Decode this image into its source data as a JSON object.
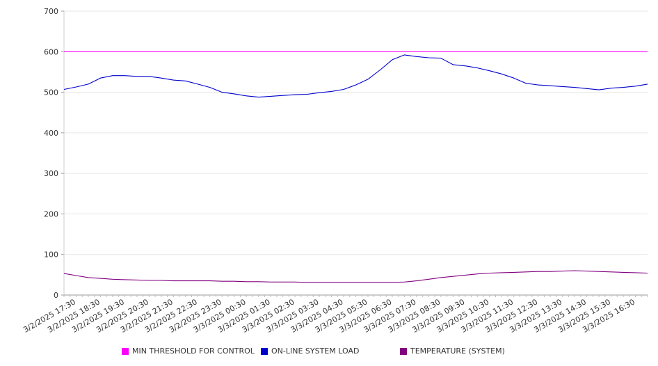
{
  "chart_data": {
    "type": "line",
    "ylim": [
      0,
      700
    ],
    "y_ticks": [
      0,
      100,
      200,
      300,
      400,
      500,
      600,
      700
    ],
    "grid": "horizontal",
    "legend_placement": "bottom",
    "x_tick_labels": [
      "3/2/2025 17:30",
      "3/2/2025 18:30",
      "3/2/2025 19:30",
      "3/2/2025 20:30",
      "3/2/2025 21:30",
      "3/2/2025 22:30",
      "3/2/2025 23:30",
      "3/3/2025 00:30",
      "3/3/2025 01:30",
      "3/3/2025 02:30",
      "3/3/2025 03:30",
      "3/3/2025 04:30",
      "3/3/2025 05:30",
      "3/3/2025 06:30",
      "3/3/2025 07:30",
      "3/3/2025 08:30",
      "3/3/2025 09:30",
      "3/3/2025 10:30",
      "3/3/2025 11:30",
      "3/3/2025 12:30",
      "3/3/2025 13:30",
      "3/3/2025 14:30",
      "3/3/2025 15:30",
      "3/3/2025 16:30"
    ],
    "x": [
      "3/2/2025 17:30",
      "3/2/2025 18:00",
      "3/2/2025 18:30",
      "3/2/2025 19:00",
      "3/2/2025 19:30",
      "3/2/2025 20:00",
      "3/2/2025 20:30",
      "3/2/2025 21:00",
      "3/2/2025 21:30",
      "3/2/2025 22:00",
      "3/2/2025 22:30",
      "3/2/2025 23:00",
      "3/2/2025 23:30",
      "3/3/2025 00:00",
      "3/3/2025 00:30",
      "3/3/2025 01:00",
      "3/3/2025 01:30",
      "3/3/2025 02:00",
      "3/3/2025 02:30",
      "3/3/2025 03:00",
      "3/3/2025 03:30",
      "3/3/2025 04:00",
      "3/3/2025 04:30",
      "3/3/2025 05:00",
      "3/3/2025 05:30",
      "3/3/2025 06:00",
      "3/3/2025 06:30",
      "3/3/2025 07:00",
      "3/3/2025 07:30",
      "3/3/2025 08:00",
      "3/3/2025 08:30",
      "3/3/2025 09:00",
      "3/3/2025 09:30",
      "3/3/2025 10:00",
      "3/3/2025 10:30",
      "3/3/2025 11:00",
      "3/3/2025 11:30",
      "3/3/2025 12:00",
      "3/3/2025 12:30",
      "3/3/2025 13:00",
      "3/3/2025 13:30",
      "3/3/2025 14:00",
      "3/3/2025 14:30",
      "3/3/2025 15:00",
      "3/3/2025 15:30",
      "3/3/2025 16:00",
      "3/3/2025 16:30",
      "3/3/2025 17:00",
      "3/3/2025 17:30"
    ],
    "series": [
      {
        "name": "MIN THRESHOLD FOR CONTROL",
        "color": "#ff00ff",
        "values": [
          600,
          600,
          600,
          600,
          600,
          600,
          600,
          600,
          600,
          600,
          600,
          600,
          600,
          600,
          600,
          600,
          600,
          600,
          600,
          600,
          600,
          600,
          600,
          600,
          600,
          600,
          600,
          600,
          600,
          600,
          600,
          600,
          600,
          600,
          600,
          600,
          600,
          600,
          600,
          600,
          600,
          600,
          600,
          600,
          600,
          600,
          600,
          600,
          600
        ]
      },
      {
        "name": "ON-LINE SYSTEM LOAD",
        "color": "#0000cc",
        "values": [
          507,
          513,
          520,
          535,
          541,
          541,
          539,
          539,
          535,
          530,
          528,
          520,
          512,
          500,
          496,
          491,
          488,
          490,
          492,
          494,
          495,
          499,
          502,
          507,
          518,
          532,
          555,
          580,
          592,
          588,
          585,
          584,
          568,
          565,
          560,
          553,
          545,
          535,
          522,
          518,
          516,
          514,
          512,
          509,
          506,
          510,
          512,
          515,
          520
        ]
      },
      {
        "name": "TEMPERATURE (SYSTEM)",
        "color": "#800080",
        "values": [
          53,
          48,
          43,
          41,
          39,
          38,
          37,
          36,
          36,
          35,
          35,
          35,
          35,
          34,
          34,
          33,
          33,
          32,
          32,
          32,
          31,
          31,
          31,
          31,
          31,
          31,
          31,
          31,
          32,
          35,
          39,
          43,
          46,
          49,
          52,
          54,
          55,
          56,
          57,
          58,
          58,
          59,
          60,
          59,
          58,
          57,
          56,
          55,
          54
        ]
      }
    ]
  }
}
